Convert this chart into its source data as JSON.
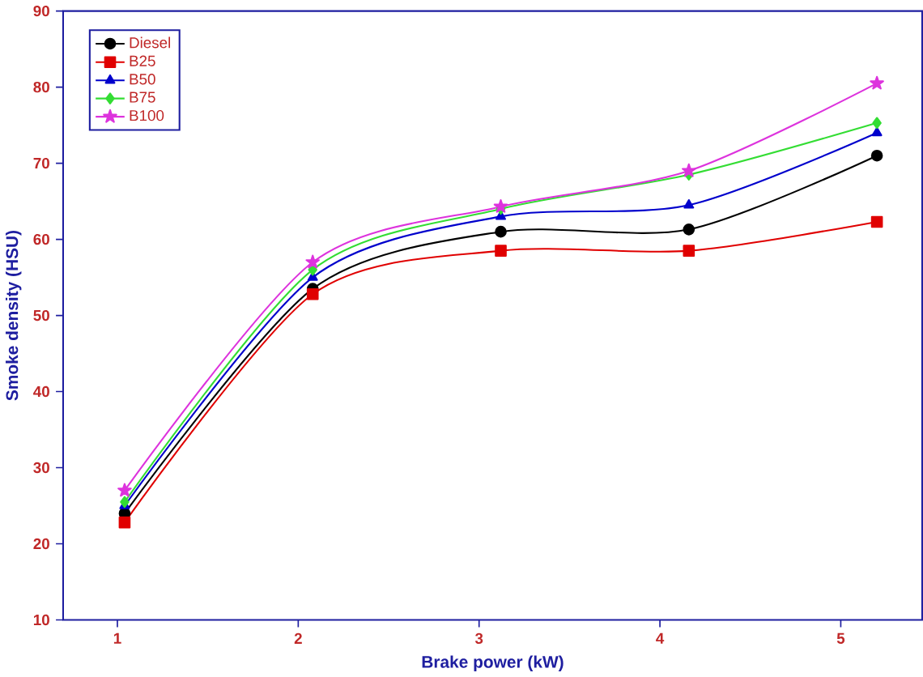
{
  "chart_data": {
    "type": "line",
    "xlabel": "Brake power (kW)",
    "ylabel": "Smoke density (HSU)",
    "x": [
      1.04,
      2.08,
      3.12,
      4.16,
      5.2
    ],
    "series": [
      {
        "name": "Diesel",
        "color": "#000000",
        "marker": "circle",
        "values": [
          24,
          53.5,
          61,
          61.3,
          71
        ]
      },
      {
        "name": "B25",
        "color": "#e00000",
        "marker": "square",
        "values": [
          22.8,
          52.8,
          58.5,
          58.5,
          62.3
        ]
      },
      {
        "name": "B50",
        "color": "#0000cc",
        "marker": "triangle",
        "values": [
          25,
          55,
          63,
          64.5,
          74
        ]
      },
      {
        "name": "B75",
        "color": "#33dd33",
        "marker": "diamond",
        "values": [
          25.5,
          56,
          64,
          68.5,
          75.3
        ]
      },
      {
        "name": "B100",
        "color": "#dd33dd",
        "marker": "star",
        "values": [
          27,
          57,
          64.3,
          69,
          80.5
        ]
      }
    ],
    "xlim": [
      0.7,
      5.45
    ],
    "ylim": [
      10,
      90
    ],
    "xticks": [
      1,
      2,
      3,
      4,
      5
    ],
    "yticks": [
      10,
      20,
      30,
      40,
      50,
      60,
      70,
      80,
      90
    ],
    "legend": "top left",
    "grid": false,
    "line_style": "solid"
  }
}
